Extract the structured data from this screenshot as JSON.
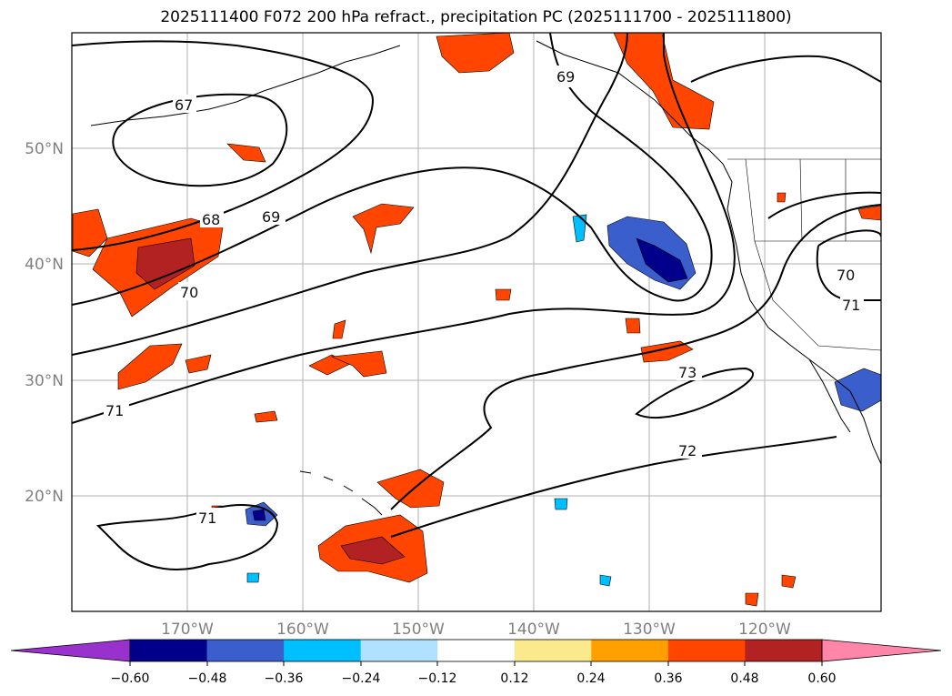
{
  "title": "2025111400 F072 200 hPa refract., precipitation PC (2025111700 - 2025111800)",
  "map": {
    "lon_ticks": [
      "170°W",
      "160°W",
      "150°W",
      "140°W",
      "130°W",
      "120°W"
    ],
    "lat_ticks": [
      "50°N",
      "40°N",
      "30°N",
      "20°N"
    ],
    "contour_labels": [
      "67",
      "68",
      "69",
      "69",
      "70",
      "70",
      "71",
      "71",
      "71",
      "72",
      "73"
    ]
  },
  "colorbar": {
    "tick_labels": [
      "−0.60",
      "−0.48",
      "−0.36",
      "−0.24",
      "−0.12",
      "0.12",
      "0.24",
      "0.36",
      "0.48",
      "0.60"
    ],
    "colors": [
      "#9932cc",
      "#00008b",
      "#3a5fcd",
      "#00bfff",
      "#b0e2ff",
      "#ffffff",
      "#fbe98e",
      "#ff9f00",
      "#ff4500",
      "#b22222",
      "#ff86a8"
    ]
  }
}
